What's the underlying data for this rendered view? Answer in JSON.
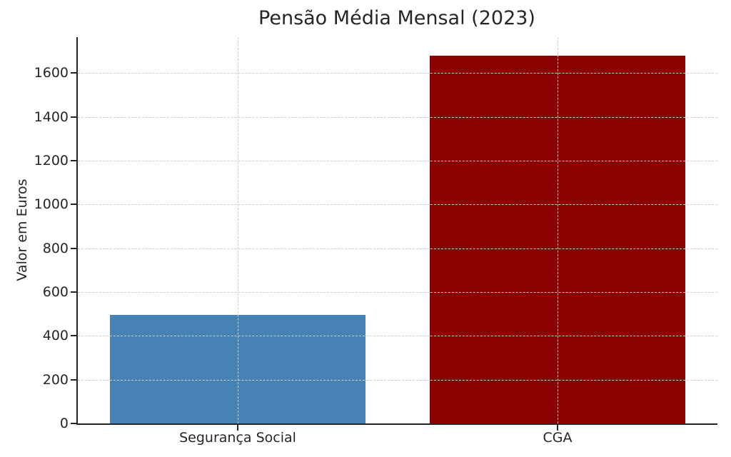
{
  "chart_data": {
    "type": "bar",
    "title": "Pensão Média Mensal (2023)",
    "xlabel": "",
    "ylabel": "Valor em Euros",
    "categories": [
      "Segurança Social",
      "CGA"
    ],
    "values": [
      495,
      1680
    ],
    "bar_colors": [
      "#4682B4",
      "#8B0000"
    ],
    "yticks": [
      0,
      200,
      400,
      600,
      800,
      1000,
      1200,
      1400,
      1600
    ],
    "ylim": [
      0,
      1764
    ],
    "bar_width_fraction": 0.8,
    "grid": {
      "visible": true,
      "style": "dashed",
      "axes": "both",
      "color": "#cdcdcd",
      "drawn_over_bars": true
    },
    "legend": {
      "visible": false
    }
  },
  "colors": {
    "background": "#ffffff",
    "axis": "#262626",
    "text": "#262626",
    "grid": "#cdcdcd",
    "bar_blue": "#4682B4",
    "bar_dark_red": "#8B0000"
  }
}
